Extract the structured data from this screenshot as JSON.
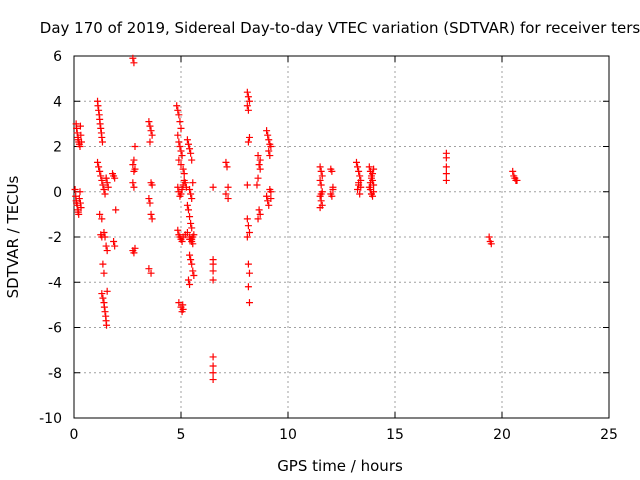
{
  "chart_data": {
    "type": "scatter",
    "title": "Day 170 of 2019, Sidereal Day-to-day VTEC variation (SDTVAR) for receiver ters",
    "xlabel": "GPS time / hours",
    "ylabel": "SDTVAR / TECUs",
    "xlim": [
      0,
      25
    ],
    "ylim": [
      -10,
      6
    ],
    "xticks": [
      0,
      5,
      10,
      15,
      20,
      25
    ],
    "yticks": [
      -10,
      -8,
      -6,
      -4,
      -2,
      0,
      2,
      4,
      6
    ],
    "grid": true,
    "marker": "+",
    "series": [
      {
        "name": "SDTVAR",
        "color": "#ff0000",
        "x": [
          0.1,
          0.12,
          0.15,
          0.18,
          0.2,
          0.22,
          0.25,
          0.28,
          0.3,
          0.32,
          0.35,
          0.05,
          0.08,
          0.1,
          0.12,
          0.15,
          0.18,
          0.2,
          0.22,
          0.25,
          0.28,
          0.3,
          0.33,
          1.1,
          1.12,
          1.15,
          1.18,
          1.2,
          1.22,
          1.25,
          1.28,
          1.3,
          1.33,
          1.1,
          1.15,
          1.2,
          1.25,
          1.3,
          1.35,
          1.4,
          1.45,
          1.5,
          1.2,
          1.3,
          1.4,
          1.45,
          1.5,
          1.55,
          1.25,
          1.3,
          1.35,
          1.4,
          1.3,
          1.35,
          1.4,
          1.42,
          1.45,
          1.48,
          1.5,
          1.52,
          1.55,
          1.5,
          1.55,
          1.6,
          1.8,
          1.85,
          1.9,
          1.95,
          1.85,
          1.9,
          2.75,
          2.8,
          2.85,
          2.8,
          2.75,
          2.85,
          2.8,
          2.75,
          2.8,
          2.85,
          2.8,
          2.75,
          3.5,
          3.55,
          3.6,
          3.65,
          3.55,
          3.6,
          3.65,
          3.5,
          3.55,
          3.6,
          3.65,
          3.5,
          3.6,
          4.8,
          4.85,
          4.9,
          4.95,
          5.0,
          4.85,
          4.9,
          4.95,
          5.0,
          5.05,
          4.9,
          5.0,
          5.1,
          5.15,
          4.85,
          4.9,
          4.95,
          5.0,
          5.05,
          5.1,
          5.15,
          5.2,
          5.25,
          4.85,
          4.9,
          4.95,
          5.0,
          5.05,
          5.1,
          5.2,
          5.3,
          5.4,
          4.9,
          5.0,
          5.05,
          5.08,
          5.1,
          5.3,
          5.35,
          5.4,
          5.45,
          5.5,
          5.55,
          5.4,
          5.45,
          5.5,
          5.3,
          5.35,
          5.4,
          5.45,
          5.5,
          5.4,
          5.45,
          5.5,
          5.55,
          5.6,
          5.5,
          5.55,
          5.4,
          5.45,
          5.5,
          5.55,
          5.6,
          5.35,
          5.4,
          6.5,
          6.5,
          6.5,
          6.5,
          6.5,
          6.5,
          6.5,
          6.5,
          6.5,
          7.1,
          7.15,
          7.2,
          7.1,
          7.2,
          8.1,
          8.15,
          8.2,
          8.1,
          8.15,
          8.2,
          8.15,
          8.1,
          8.1,
          8.15,
          8.2,
          8.1,
          8.15,
          8.2,
          8.15,
          8.2,
          8.6,
          8.7,
          8.65,
          8.7,
          8.6,
          8.55,
          8.65,
          8.7,
          8.6,
          9.0,
          9.05,
          9.1,
          9.15,
          9.2,
          9.1,
          9.15,
          9.2,
          9.0,
          9.05,
          9.1,
          9.15,
          9.2,
          11.5,
          11.55,
          11.6,
          11.5,
          11.55,
          11.6,
          11.5,
          11.55,
          11.6,
          11.5,
          11.55,
          12.0,
          12.05,
          12.1,
          12.0,
          12.05,
          12.1,
          13.2,
          13.25,
          13.3,
          13.35,
          13.4,
          13.3,
          13.25,
          13.35,
          13.4,
          13.3,
          13.8,
          13.85,
          13.9,
          13.95,
          14.0,
          13.85,
          13.9,
          13.95,
          14.0,
          13.8,
          13.85,
          13.9,
          13.95,
          14.0,
          13.9,
          17.4,
          17.4,
          17.4,
          17.4,
          17.4,
          19.4,
          19.45,
          19.5,
          20.5,
          20.55,
          20.6,
          20.65,
          20.7
        ],
        "y": [
          3.0,
          2.8,
          2.6,
          2.4,
          2.3,
          2.2,
          2.1,
          2.0,
          2.9,
          2.5,
          2.2,
          0.1,
          -0.2,
          -0.4,
          -0.5,
          -0.6,
          -0.8,
          -0.9,
          -1.0,
          -0.3,
          0.0,
          -0.5,
          -0.7,
          4.0,
          3.8,
          3.6,
          3.4,
          3.2,
          3.0,
          2.8,
          2.6,
          2.4,
          2.2,
          1.3,
          1.1,
          0.9,
          0.7,
          0.5,
          0.3,
          0.1,
          -0.1,
          0.6,
          -1.0,
          -1.2,
          -1.8,
          -2.0,
          -2.4,
          -2.6,
          -1.9,
          -2.0,
          -3.2,
          -3.6,
          -4.5,
          -4.7,
          -4.9,
          -5.1,
          -5.3,
          -5.5,
          -5.7,
          -5.9,
          -4.4,
          0.6,
          0.4,
          0.2,
          0.8,
          0.7,
          0.6,
          -0.8,
          -2.2,
          -2.4,
          5.9,
          5.7,
          2.0,
          1.4,
          1.2,
          1.0,
          0.9,
          0.4,
          0.2,
          -2.5,
          -2.7,
          -2.6,
          3.1,
          2.9,
          2.7,
          2.5,
          2.2,
          0.4,
          0.3,
          -0.3,
          -0.5,
          -1.0,
          -1.2,
          -3.4,
          -3.6,
          3.8,
          3.6,
          3.4,
          3.1,
          2.8,
          2.5,
          2.2,
          2.0,
          1.8,
          1.6,
          1.4,
          1.2,
          1.0,
          0.8,
          0.2,
          0.0,
          -0.2,
          -0.1,
          0.1,
          0.3,
          0.5,
          0.4,
          0.2,
          -1.7,
          -1.9,
          -2.0,
          -2.1,
          -2.2,
          -2.0,
          -1.9,
          -1.8,
          -2.1,
          -4.9,
          -5.1,
          -5.3,
          -5.0,
          -5.2,
          2.3,
          2.1,
          1.9,
          1.7,
          1.4,
          0.4,
          0.1,
          -0.1,
          -0.3,
          -0.6,
          -0.8,
          -1.1,
          -1.4,
          -1.6,
          -2.0,
          -2.1,
          -2.2,
          -2.0,
          -1.9,
          -2.1,
          -2.3,
          -2.8,
          -3.0,
          -3.2,
          -3.5,
          -3.7,
          -3.9,
          -4.1,
          0.2,
          -3.0,
          -3.2,
          -3.5,
          -3.9,
          -7.3,
          -7.7,
          -8.0,
          -8.3,
          1.3,
          1.1,
          0.2,
          -0.1,
          -0.3,
          4.4,
          4.2,
          4.0,
          3.8,
          3.6,
          2.4,
          2.2,
          0.3,
          -1.2,
          -1.5,
          -1.8,
          -2.0,
          -3.2,
          -3.6,
          -4.2,
          -4.9,
          1.6,
          1.4,
          1.2,
          1.0,
          0.6,
          0.3,
          -0.8,
          -1.0,
          -1.2,
          2.7,
          2.5,
          2.3,
          2.1,
          2.0,
          1.8,
          1.6,
          0.0,
          -0.2,
          -0.4,
          -0.6,
          0.1,
          -0.3,
          1.1,
          0.9,
          0.7,
          0.5,
          0.3,
          0.0,
          -0.2,
          -0.4,
          -0.6,
          -0.7,
          -0.1,
          1.0,
          0.9,
          0.2,
          -0.1,
          -0.2,
          0.1,
          1.3,
          1.1,
          0.9,
          0.7,
          0.5,
          0.3,
          0.1,
          -0.1,
          0.2,
          0.4,
          1.1,
          0.9,
          0.7,
          0.5,
          0.3,
          0.1,
          -0.1,
          -0.2,
          0.0,
          0.2,
          0.4,
          0.6,
          0.8,
          1.0,
          -0.1,
          1.7,
          1.5,
          1.1,
          0.8,
          0.5,
          -2.0,
          -2.2,
          -2.3,
          0.9,
          0.7,
          0.6,
          0.5,
          0.5
        ]
      }
    ]
  }
}
